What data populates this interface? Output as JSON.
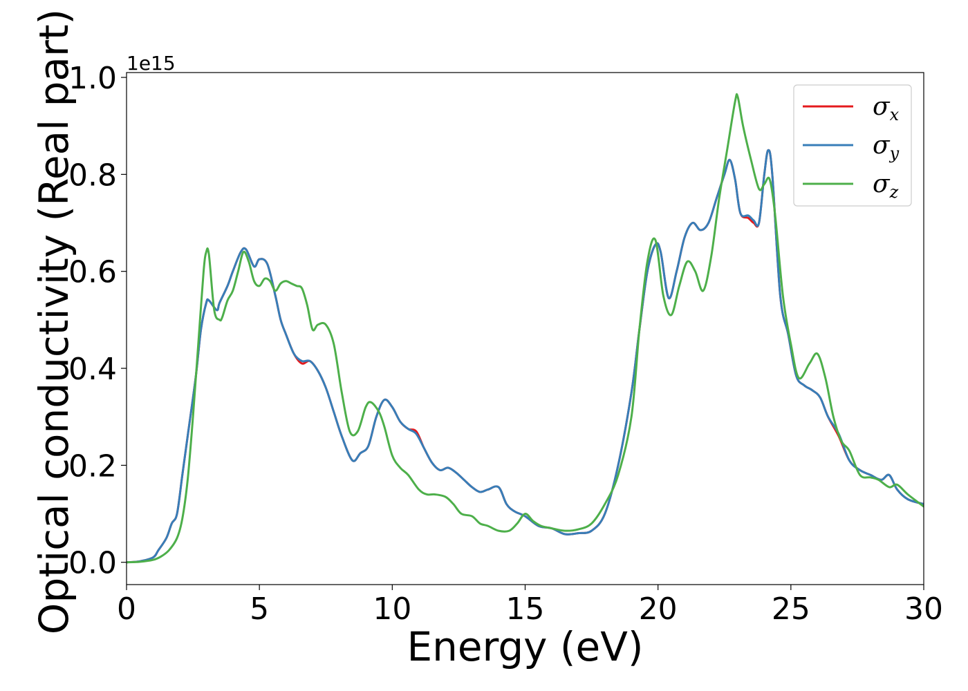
{
  "chart_data": {
    "type": "line",
    "xlabel": "Energy (eV)",
    "ylabel": "Optical conductivity (Real part)",
    "y_offset_text": "1e15",
    "xlim": [
      0,
      30
    ],
    "ylim": [
      -0.046,
      1.01
    ],
    "xticks": [
      0,
      5,
      10,
      15,
      20,
      25,
      30
    ],
    "xtick_labels": [
      "0",
      "5",
      "10",
      "15",
      "20",
      "25",
      "30"
    ],
    "yticks": [
      0.0,
      0.2,
      0.4,
      0.6,
      0.8,
      1.0
    ],
    "ytick_labels": [
      "0.0",
      "0.2",
      "0.4",
      "0.6",
      "0.8",
      "1.0"
    ],
    "grid": false,
    "legend_position": "top-right",
    "series": [
      {
        "name": "σx",
        "legend_base": "σ",
        "legend_sub": "x",
        "color": "#e41a1c",
        "x": [
          0,
          0.5,
          1.0,
          1.2,
          1.5,
          1.7,
          1.9,
          2.1,
          2.3,
          2.6,
          2.8,
          3.0,
          3.1,
          3.4,
          3.5,
          3.8,
          4.0,
          4.3,
          4.5,
          4.8,
          5.0,
          5.3,
          5.6,
          5.8,
          6.0,
          6.3,
          6.6,
          6.9,
          7.2,
          7.5,
          7.8,
          8.1,
          8.5,
          8.8,
          9.1,
          9.4,
          9.7,
          10.0,
          10.3,
          10.6,
          10.9,
          11.2,
          11.5,
          11.8,
          12.1,
          12.4,
          12.7,
          13.0,
          13.3,
          13.6,
          14.0,
          14.3,
          14.6,
          15.0,
          15.5,
          16.0,
          16.5,
          17.0,
          17.5,
          18.0,
          18.5,
          19.0,
          19.3,
          19.6,
          19.9,
          20.1,
          20.4,
          20.7,
          21.0,
          21.3,
          21.6,
          21.9,
          22.2,
          22.5,
          22.7,
          22.9,
          23.1,
          23.4,
          23.6,
          23.8,
          24.0,
          24.15,
          24.3,
          24.6,
          24.9,
          25.2,
          25.5,
          25.8,
          26.1,
          26.4,
          26.8,
          27.2,
          27.6,
          28.0,
          28.4,
          28.7,
          29.0,
          29.4,
          30.0
        ],
        "y": [
          0.0,
          0.002,
          0.01,
          0.025,
          0.05,
          0.08,
          0.1,
          0.18,
          0.26,
          0.38,
          0.48,
          0.535,
          0.54,
          0.52,
          0.535,
          0.57,
          0.6,
          0.64,
          0.645,
          0.61,
          0.625,
          0.615,
          0.55,
          0.5,
          0.47,
          0.43,
          0.41,
          0.415,
          0.395,
          0.36,
          0.31,
          0.26,
          0.21,
          0.225,
          0.24,
          0.3,
          0.335,
          0.32,
          0.29,
          0.275,
          0.27,
          0.235,
          0.205,
          0.19,
          0.195,
          0.185,
          0.17,
          0.155,
          0.145,
          0.15,
          0.155,
          0.12,
          0.105,
          0.095,
          0.075,
          0.07,
          0.058,
          0.06,
          0.065,
          0.1,
          0.2,
          0.35,
          0.48,
          0.6,
          0.655,
          0.64,
          0.545,
          0.6,
          0.67,
          0.7,
          0.685,
          0.7,
          0.75,
          0.8,
          0.83,
          0.79,
          0.72,
          0.71,
          0.7,
          0.7,
          0.8,
          0.85,
          0.8,
          0.55,
          0.47,
          0.385,
          0.365,
          0.355,
          0.34,
          0.3,
          0.26,
          0.21,
          0.19,
          0.18,
          0.17,
          0.18,
          0.15,
          0.13,
          0.12
        ]
      },
      {
        "name": "σy",
        "legend_base": "σ",
        "legend_sub": "y",
        "color": "#377eb8",
        "x": [
          0,
          0.5,
          1.0,
          1.2,
          1.5,
          1.7,
          1.9,
          2.1,
          2.3,
          2.6,
          2.8,
          3.0,
          3.1,
          3.4,
          3.5,
          3.8,
          4.0,
          4.3,
          4.5,
          4.8,
          5.0,
          5.3,
          5.6,
          5.8,
          6.0,
          6.3,
          6.6,
          6.9,
          7.2,
          7.5,
          7.8,
          8.1,
          8.5,
          8.8,
          9.1,
          9.4,
          9.7,
          10.0,
          10.3,
          10.6,
          10.9,
          11.2,
          11.5,
          11.8,
          12.1,
          12.4,
          12.7,
          13.0,
          13.3,
          13.6,
          14.0,
          14.3,
          14.6,
          15.0,
          15.5,
          16.0,
          16.5,
          17.0,
          17.5,
          18.0,
          18.5,
          19.0,
          19.3,
          19.6,
          19.9,
          20.1,
          20.4,
          20.7,
          21.0,
          21.3,
          21.6,
          21.9,
          22.2,
          22.5,
          22.7,
          22.9,
          23.1,
          23.4,
          23.6,
          23.8,
          24.0,
          24.15,
          24.3,
          24.6,
          24.9,
          25.2,
          25.5,
          25.8,
          26.1,
          26.4,
          26.8,
          27.2,
          27.6,
          28.0,
          28.4,
          28.7,
          29.0,
          29.4,
          30.0
        ],
        "y": [
          0.0,
          0.002,
          0.01,
          0.025,
          0.05,
          0.08,
          0.1,
          0.18,
          0.26,
          0.38,
          0.48,
          0.535,
          0.54,
          0.52,
          0.535,
          0.57,
          0.6,
          0.64,
          0.645,
          0.61,
          0.625,
          0.615,
          0.55,
          0.5,
          0.47,
          0.43,
          0.415,
          0.415,
          0.395,
          0.36,
          0.31,
          0.26,
          0.21,
          0.225,
          0.24,
          0.3,
          0.335,
          0.32,
          0.29,
          0.275,
          0.265,
          0.235,
          0.205,
          0.19,
          0.195,
          0.185,
          0.17,
          0.155,
          0.145,
          0.15,
          0.155,
          0.12,
          0.105,
          0.095,
          0.075,
          0.07,
          0.058,
          0.06,
          0.065,
          0.1,
          0.2,
          0.35,
          0.48,
          0.6,
          0.655,
          0.64,
          0.545,
          0.6,
          0.67,
          0.7,
          0.685,
          0.7,
          0.75,
          0.8,
          0.83,
          0.79,
          0.72,
          0.715,
          0.705,
          0.7,
          0.8,
          0.85,
          0.8,
          0.55,
          0.47,
          0.385,
          0.365,
          0.355,
          0.34,
          0.3,
          0.265,
          0.21,
          0.19,
          0.18,
          0.17,
          0.18,
          0.15,
          0.13,
          0.12
        ]
      },
      {
        "name": "σz",
        "legend_base": "σ",
        "legend_sub": "z",
        "color": "#4daf4a",
        "x": [
          0,
          0.5,
          1.0,
          1.3,
          1.6,
          1.9,
          2.1,
          2.3,
          2.5,
          2.7,
          2.9,
          3.0,
          3.1,
          3.3,
          3.5,
          3.6,
          3.8,
          4.0,
          4.2,
          4.4,
          4.6,
          4.8,
          5.0,
          5.2,
          5.4,
          5.6,
          5.8,
          6.0,
          6.2,
          6.4,
          6.6,
          6.8,
          7.0,
          7.2,
          7.5,
          7.8,
          8.1,
          8.4,
          8.7,
          9.0,
          9.2,
          9.5,
          9.7,
          10.0,
          10.3,
          10.6,
          11.0,
          11.3,
          11.6,
          12.0,
          12.3,
          12.6,
          13.0,
          13.3,
          13.6,
          14.0,
          14.4,
          14.7,
          15.0,
          15.3,
          15.6,
          16.0,
          16.5,
          17.0,
          17.5,
          18.0,
          18.5,
          19.0,
          19.3,
          19.6,
          19.9,
          20.2,
          20.5,
          20.8,
          21.1,
          21.4,
          21.7,
          22.0,
          22.3,
          22.6,
          22.9,
          23.0,
          23.2,
          23.5,
          23.8,
          24.0,
          24.2,
          24.4,
          24.7,
          25.0,
          25.3,
          25.7,
          26.0,
          26.3,
          26.6,
          26.9,
          27.2,
          27.6,
          28.0,
          28.3,
          28.7,
          29.0,
          29.4,
          30.0
        ],
        "y": [
          0.0,
          0.001,
          0.005,
          0.012,
          0.025,
          0.05,
          0.09,
          0.17,
          0.3,
          0.45,
          0.6,
          0.64,
          0.635,
          0.52,
          0.5,
          0.505,
          0.54,
          0.56,
          0.6,
          0.64,
          0.62,
          0.58,
          0.57,
          0.585,
          0.58,
          0.56,
          0.575,
          0.58,
          0.575,
          0.57,
          0.565,
          0.53,
          0.48,
          0.49,
          0.49,
          0.45,
          0.35,
          0.27,
          0.27,
          0.32,
          0.33,
          0.31,
          0.28,
          0.22,
          0.195,
          0.18,
          0.15,
          0.14,
          0.14,
          0.135,
          0.12,
          0.1,
          0.095,
          0.08,
          0.075,
          0.065,
          0.065,
          0.08,
          0.1,
          0.085,
          0.075,
          0.07,
          0.065,
          0.068,
          0.08,
          0.12,
          0.18,
          0.3,
          0.48,
          0.62,
          0.665,
          0.55,
          0.51,
          0.57,
          0.62,
          0.6,
          0.56,
          0.63,
          0.75,
          0.85,
          0.95,
          0.96,
          0.9,
          0.83,
          0.77,
          0.78,
          0.79,
          0.72,
          0.55,
          0.45,
          0.38,
          0.41,
          0.43,
          0.38,
          0.3,
          0.25,
          0.23,
          0.18,
          0.175,
          0.17,
          0.155,
          0.16,
          0.14,
          0.115
        ]
      }
    ]
  }
}
